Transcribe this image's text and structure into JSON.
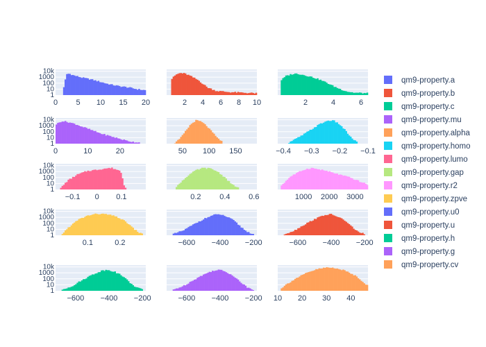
{
  "chart_data": {
    "type": "bar",
    "subtype": "histogram-grid",
    "y_scale": "log",
    "y_ticks": [
      "1",
      "10",
      "100",
      "1000",
      "10k"
    ],
    "y_range": [
      0,
      4.3
    ],
    "legend_position": "right",
    "panels": [
      {
        "name": "qm9-property.a",
        "color": "#636efa",
        "xlim": [
          0,
          20
        ],
        "xticks": [
          {
            "v": 0,
            "l": "0"
          },
          {
            "v": 5,
            "l": "5"
          },
          {
            "v": 10,
            "l": "10"
          },
          {
            "v": 15,
            "l": "15"
          },
          {
            "v": 20,
            "l": "20"
          }
        ],
        "points": [
          [
            1.5,
            0
          ],
          [
            1.9,
            1.5
          ],
          [
            2.4,
            3.5
          ],
          [
            3,
            3.6
          ],
          [
            4,
            3.3
          ],
          [
            5,
            3.1
          ],
          [
            6,
            2.9
          ],
          [
            8,
            2.6
          ],
          [
            10,
            2.2
          ],
          [
            12,
            1.8
          ],
          [
            14,
            1.5
          ],
          [
            16,
            1.3
          ],
          [
            18,
            1.0
          ],
          [
            20,
            0.8
          ]
        ]
      },
      {
        "name": "qm9-property.b",
        "color": "#ef553b",
        "xlim": [
          0,
          10
        ],
        "xticks": [
          {
            "v": 2,
            "l": "2"
          },
          {
            "v": 4,
            "l": "4"
          },
          {
            "v": 6,
            "l": "6"
          },
          {
            "v": 8,
            "l": "8"
          },
          {
            "v": 10,
            "l": "10"
          }
        ],
        "points": [
          [
            0.5,
            2.6
          ],
          [
            1,
            3.4
          ],
          [
            1.5,
            3.7
          ],
          [
            2,
            3.6
          ],
          [
            2.5,
            3.3
          ],
          [
            3,
            2.9
          ],
          [
            3.5,
            2.5
          ],
          [
            4,
            1.9
          ],
          [
            4.5,
            1.3
          ],
          [
            5.5,
            0.7
          ],
          [
            7,
            0.5
          ],
          [
            8.5,
            0.4
          ],
          [
            10,
            0.3
          ]
        ]
      },
      {
        "name": "qm9-property.c",
        "color": "#00cc96",
        "xlim": [
          0,
          6.5
        ],
        "xticks": [
          {
            "v": 2,
            "l": "2"
          },
          {
            "v": 4,
            "l": "4"
          },
          {
            "v": 6,
            "l": "6"
          }
        ],
        "points": [
          [
            0.2,
            2.4
          ],
          [
            0.6,
            3.2
          ],
          [
            1,
            3.5
          ],
          [
            1.4,
            3.6
          ],
          [
            2,
            3.3
          ],
          [
            2.5,
            3.0
          ],
          [
            3,
            2.6
          ],
          [
            3.5,
            2.1
          ],
          [
            4,
            1.5
          ],
          [
            4.5,
            1.0
          ],
          [
            5,
            0.6
          ],
          [
            5.5,
            0.4
          ],
          [
            6.5,
            0.3
          ]
        ]
      },
      {
        "name": "qm9-property.mu",
        "color": "#ab63fa",
        "xlim": [
          0,
          28
        ],
        "xticks": [
          {
            "v": 0,
            "l": "0"
          },
          {
            "v": 10,
            "l": "10"
          },
          {
            "v": 20,
            "l": "20"
          }
        ],
        "points": [
          [
            0,
            3.2
          ],
          [
            2,
            3.8
          ],
          [
            4,
            3.6
          ],
          [
            6,
            3.3
          ],
          [
            8,
            2.9
          ],
          [
            10,
            2.5
          ],
          [
            12,
            2.1
          ],
          [
            14,
            1.7
          ],
          [
            16,
            1.4
          ],
          [
            18,
            1.1
          ],
          [
            20,
            0.8
          ],
          [
            22,
            0.5
          ],
          [
            24,
            0.3
          ],
          [
            26,
            0.2
          ]
        ]
      },
      {
        "name": "qm9-property.alpha",
        "color": "#ffa15a",
        "xlim": [
          20,
          190
        ],
        "xticks": [
          {
            "v": 50,
            "l": "50"
          },
          {
            "v": 100,
            "l": "100"
          },
          {
            "v": 150,
            "l": "150"
          }
        ],
        "points": [
          [
            35,
            0.1
          ],
          [
            45,
            0.8
          ],
          [
            55,
            2.0
          ],
          [
            65,
            3.2
          ],
          [
            75,
            3.9
          ],
          [
            85,
            3.7
          ],
          [
            95,
            3.0
          ],
          [
            105,
            2.0
          ],
          [
            115,
            1.0
          ],
          [
            125,
            0.3
          ]
        ]
      },
      {
        "name": "qm9-property.homo",
        "color": "#19d3f3",
        "xlim": [
          -0.42,
          -0.1
        ],
        "xticks": [
          {
            "v": -0.4,
            "l": "−0.4"
          },
          {
            "v": -0.3,
            "l": "−0.3"
          },
          {
            "v": -0.2,
            "l": "−0.2"
          },
          {
            "v": -0.1,
            "l": "−0.1"
          }
        ],
        "points": [
          [
            -0.38,
            0.2
          ],
          [
            -0.34,
            1.2
          ],
          [
            -0.3,
            2.4
          ],
          [
            -0.27,
            3.3
          ],
          [
            -0.24,
            3.9
          ],
          [
            -0.22,
            3.8
          ],
          [
            -0.2,
            3.2
          ],
          [
            -0.18,
            2.2
          ],
          [
            -0.16,
            1.0
          ],
          [
            -0.14,
            0.3
          ]
        ]
      },
      {
        "name": "qm9-property.lumo",
        "color": "#ff6692",
        "xlim": [
          -0.17,
          0.2
        ],
        "xticks": [
          {
            "v": -0.1,
            "l": "−0.1"
          },
          {
            "v": 0,
            "l": "0"
          },
          {
            "v": 0.1,
            "l": "0.1"
          }
        ],
        "points": [
          [
            -0.15,
            0.2
          ],
          [
            -0.12,
            1.5
          ],
          [
            -0.08,
            2.5
          ],
          [
            -0.04,
            3.1
          ],
          [
            0,
            3.3
          ],
          [
            0.03,
            3.5
          ],
          [
            0.06,
            3.6
          ],
          [
            0.09,
            3.2
          ],
          [
            0.1,
            2.8
          ],
          [
            0.11,
            0.8
          ],
          [
            0.12,
            0.2
          ]
        ]
      },
      {
        "name": "qm9-property.gap",
        "color": "#b6e880",
        "xlim": [
          0,
          0.62
        ],
        "xticks": [
          {
            "v": 0.2,
            "l": "0.2"
          },
          {
            "v": 0.4,
            "l": "0.4"
          },
          {
            "v": 0.6,
            "l": "0.6"
          }
        ],
        "points": [
          [
            0.06,
            0.2
          ],
          [
            0.1,
            1.3
          ],
          [
            0.15,
            2.4
          ],
          [
            0.2,
            3.2
          ],
          [
            0.25,
            3.6
          ],
          [
            0.3,
            3.5
          ],
          [
            0.35,
            3.0
          ],
          [
            0.4,
            2.0
          ],
          [
            0.45,
            0.8
          ],
          [
            0.5,
            0.2
          ]
        ]
      },
      {
        "name": "qm9-property.r2",
        "color": "#ff97ff",
        "xlim": [
          0,
          3500
        ],
        "xticks": [
          {
            "v": 1000,
            "l": "1000"
          },
          {
            "v": 2000,
            "l": "2000"
          },
          {
            "v": 3000,
            "l": "3000"
          }
        ],
        "points": [
          [
            100,
            0.5
          ],
          [
            500,
            2.2
          ],
          [
            1000,
            3.3
          ],
          [
            1300,
            3.6
          ],
          [
            1800,
            3.2
          ],
          [
            2300,
            2.6
          ],
          [
            2800,
            2.0
          ],
          [
            3200,
            1.3
          ],
          [
            3500,
            0.8
          ]
        ]
      },
      {
        "name": "qm9-property.zpve",
        "color": "#fecb52",
        "xlim": [
          0,
          0.28
        ],
        "xticks": [
          {
            "v": 0.1,
            "l": "0.1"
          },
          {
            "v": 0.2,
            "l": "0.2"
          }
        ],
        "points": [
          [
            0.02,
            0.2
          ],
          [
            0.04,
            1.3
          ],
          [
            0.07,
            2.6
          ],
          [
            0.1,
            3.3
          ],
          [
            0.13,
            3.6
          ],
          [
            0.16,
            3.5
          ],
          [
            0.19,
            3.1
          ],
          [
            0.22,
            2.2
          ],
          [
            0.24,
            1.2
          ],
          [
            0.26,
            0.4
          ],
          [
            0.27,
            0.2
          ]
        ]
      },
      {
        "name": "qm9-property.u0",
        "color": "#636efa",
        "xlim": [
          -720,
          -180
        ],
        "xticks": [
          {
            "v": -600,
            "l": "−600"
          },
          {
            "v": -400,
            "l": "−400"
          },
          {
            "v": -200,
            "l": "−200"
          }
        ],
        "points": [
          [
            -680,
            0.2
          ],
          [
            -620,
            0.8
          ],
          [
            -560,
            1.8
          ],
          [
            -500,
            2.7
          ],
          [
            -440,
            3.4
          ],
          [
            -400,
            3.5
          ],
          [
            -360,
            3.1
          ],
          [
            -320,
            2.5
          ],
          [
            -280,
            1.5
          ],
          [
            -240,
            0.6
          ],
          [
            -200,
            0.2
          ]
        ]
      },
      {
        "name": "qm9-property.u",
        "color": "#ef553b",
        "xlim": [
          -720,
          -180
        ],
        "xticks": [
          {
            "v": -600,
            "l": "−600"
          },
          {
            "v": -400,
            "l": "−400"
          },
          {
            "v": -200,
            "l": "−200"
          }
        ],
        "points": [
          [
            -680,
            0.2
          ],
          [
            -620,
            0.8
          ],
          [
            -560,
            1.8
          ],
          [
            -500,
            2.7
          ],
          [
            -440,
            3.4
          ],
          [
            -400,
            3.5
          ],
          [
            -360,
            3.1
          ],
          [
            -320,
            2.5
          ],
          [
            -280,
            1.5
          ],
          [
            -240,
            0.6
          ],
          [
            -200,
            0.2
          ]
        ]
      },
      {
        "name": "qm9-property.h",
        "color": "#00cc96",
        "xlim": [
          -720,
          -180
        ],
        "xticks": [
          {
            "v": -600,
            "l": "−600"
          },
          {
            "v": -400,
            "l": "−400"
          },
          {
            "v": -200,
            "l": "−200"
          }
        ],
        "points": [
          [
            -680,
            0.2
          ],
          [
            -620,
            0.8
          ],
          [
            -560,
            1.8
          ],
          [
            -500,
            2.7
          ],
          [
            -440,
            3.4
          ],
          [
            -400,
            3.5
          ],
          [
            -360,
            3.1
          ],
          [
            -320,
            2.5
          ],
          [
            -280,
            1.5
          ],
          [
            -240,
            0.6
          ],
          [
            -200,
            0.2
          ]
        ]
      },
      {
        "name": "qm9-property.g",
        "color": "#ab63fa",
        "xlim": [
          -720,
          -180
        ],
        "xticks": [
          {
            "v": -600,
            "l": "−600"
          },
          {
            "v": -400,
            "l": "−400"
          },
          {
            "v": -200,
            "l": "−200"
          }
        ],
        "points": [
          [
            -680,
            0.2
          ],
          [
            -620,
            0.8
          ],
          [
            -560,
            1.8
          ],
          [
            -500,
            2.7
          ],
          [
            -440,
            3.4
          ],
          [
            -400,
            3.5
          ],
          [
            -360,
            3.1
          ],
          [
            -320,
            2.5
          ],
          [
            -280,
            1.5
          ],
          [
            -240,
            0.6
          ],
          [
            -200,
            0.2
          ]
        ]
      },
      {
        "name": "qm9-property.cv",
        "color": "#ffa15a",
        "xlim": [
          10,
          47
        ],
        "xticks": [
          {
            "v": 10,
            "l": "10"
          },
          {
            "v": 20,
            "l": "20"
          },
          {
            "v": 30,
            "l": "30"
          },
          {
            "v": 40,
            "l": "40"
          }
        ],
        "points": [
          [
            11,
            0.3
          ],
          [
            14,
            1.2
          ],
          [
            18,
            2.2
          ],
          [
            22,
            3.0
          ],
          [
            26,
            3.6
          ],
          [
            30,
            3.9
          ],
          [
            34,
            3.8
          ],
          [
            38,
            3.3
          ],
          [
            42,
            2.5
          ],
          [
            45,
            1.5
          ],
          [
            47,
            0.8
          ]
        ]
      }
    ]
  }
}
